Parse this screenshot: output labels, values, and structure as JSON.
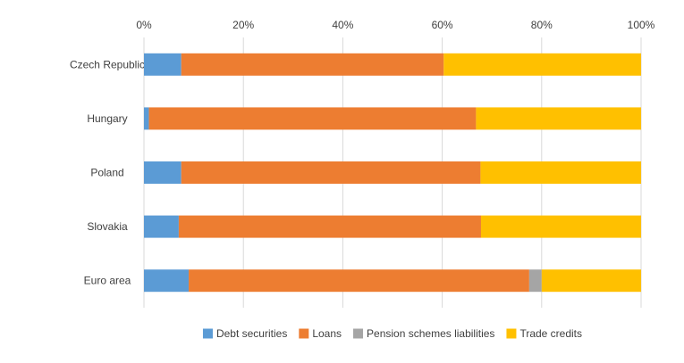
{
  "chart_data": {
    "type": "bar",
    "orientation": "horizontal",
    "stacked": true,
    "percent": true,
    "title": "",
    "xlabel": "",
    "ylabel": "",
    "xlim": [
      0,
      100
    ],
    "x_ticks": [
      "0%",
      "20%",
      "40%",
      "60%",
      "80%",
      "100%"
    ],
    "x_axis_position": "top",
    "grid": true,
    "legend_position": "bottom",
    "categories": [
      "Czech Republic",
      "Hungary",
      "Poland",
      "Slovakia",
      "Euro area"
    ],
    "series": [
      {
        "name": "Debt securities",
        "color": "#5B9BD5",
        "values": [
          7.5,
          1.0,
          7.5,
          7.0,
          9.0
        ]
      },
      {
        "name": "Loans",
        "color": "#ED7D31",
        "values": [
          52.8,
          65.8,
          60.2,
          60.8,
          68.5
        ]
      },
      {
        "name": "Pension schemes liabilities",
        "color": "#A5A5A5",
        "values": [
          0.0,
          0.0,
          0.0,
          0.0,
          2.5
        ]
      },
      {
        "name": "Trade credits",
        "color": "#FFC000",
        "values": [
          39.7,
          33.2,
          32.3,
          32.2,
          20.0
        ]
      }
    ]
  }
}
